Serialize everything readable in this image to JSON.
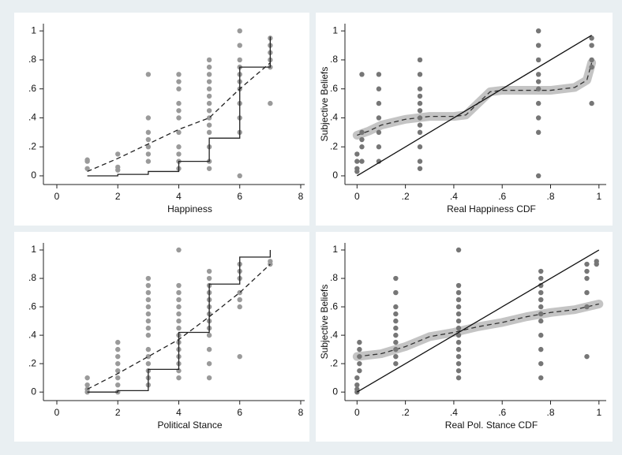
{
  "chart_data": [
    {
      "type": "scatter",
      "xlabel": "Happiness",
      "xlim": [
        -0.44,
        8.13
      ],
      "ylim": [
        -0.06,
        1.05
      ],
      "xticks": [
        0,
        2,
        4,
        6,
        8
      ],
      "yticks": [
        0,
        {
          "value": 0.2,
          "label": ".2"
        },
        {
          "value": 0.4,
          "label": ".4"
        },
        {
          "value": 0.6,
          "label": ".6"
        },
        {
          "value": 0.8,
          "label": ".8"
        },
        1
      ],
      "series": [
        {
          "type": "scatter",
          "color": "#9a9a9a",
          "x": [
            1,
            1,
            1,
            2,
            2,
            2,
            3,
            3,
            3,
            3,
            3,
            3,
            3,
            4,
            4,
            4,
            4,
            4,
            4,
            4,
            4,
            4,
            4,
            4,
            5,
            5,
            5,
            5,
            5,
            5,
            5,
            5,
            5,
            5,
            5,
            5,
            5,
            5,
            6,
            6,
            6,
            6,
            6,
            6,
            6,
            6,
            6,
            6,
            6,
            7,
            7,
            7,
            7,
            7,
            7
          ],
          "values": [
            0.05,
            0.1,
            0.11,
            0.04,
            0.06,
            0.15,
            0.1,
            0.15,
            0.2,
            0.25,
            0.3,
            0.4,
            0.7,
            0.05,
            0.1,
            0.15,
            0.2,
            0.3,
            0.4,
            0.45,
            0.5,
            0.6,
            0.65,
            0.7,
            0.05,
            0.1,
            0.2,
            0.3,
            0.35,
            0.4,
            0.45,
            0.5,
            0.55,
            0.6,
            0.65,
            0.7,
            0.75,
            0.8,
            0,
            0.3,
            0.4,
            0.5,
            0.6,
            0.65,
            0.7,
            0.75,
            0.8,
            0.9,
            1,
            0.5,
            0.75,
            0.8,
            0.85,
            0.9,
            0.95
          ]
        },
        {
          "type": "line",
          "dash": true,
          "color": "#222222",
          "x": [
            1,
            2,
            3,
            4,
            5,
            6,
            7
          ],
          "values": [
            0.03,
            0.12,
            0.22,
            0.32,
            0.4,
            0.6,
            0.78
          ]
        },
        {
          "type": "step",
          "color": "#222222",
          "x": [
            1,
            2,
            3,
            4,
            5,
            6,
            7
          ],
          "values": [
            0,
            0.01,
            0.03,
            0.1,
            0.26,
            0.75,
            0.96
          ]
        }
      ]
    },
    {
      "type": "scatter",
      "xlabel": "Real Happiness CDF",
      "ylabel": "Subjective Beliefs",
      "xlim": [
        -0.05,
        1.03
      ],
      "ylim": [
        -0.06,
        1.05
      ],
      "xticks": [
        0,
        {
          "value": 0.2,
          "label": ".2"
        },
        {
          "value": 0.4,
          "label": ".4"
        },
        {
          "value": 0.6,
          "label": ".6"
        },
        {
          "value": 0.8,
          "label": ".8"
        },
        1
      ],
      "yticks": [
        0,
        {
          "value": 0.2,
          "label": ".2"
        },
        {
          "value": 0.4,
          "label": ".4"
        },
        {
          "value": 0.6,
          "label": ".6"
        },
        {
          "value": 0.8,
          "label": ".8"
        },
        1
      ],
      "series": [
        {
          "type": "line",
          "dash": true,
          "color": "#333333",
          "band_color": "#c4c4c4",
          "x": [
            0,
            0.05,
            0.1,
            0.2,
            0.3,
            0.4,
            0.45,
            0.5,
            0.55,
            0.6,
            0.7,
            0.8,
            0.9,
            0.95,
            0.97
          ],
          "values": [
            0.28,
            0.31,
            0.35,
            0.39,
            0.41,
            0.41,
            0.42,
            0.5,
            0.58,
            0.59,
            0.59,
            0.59,
            0.61,
            0.66,
            0.78
          ]
        },
        {
          "type": "scatter",
          "color": "#767676",
          "x": [
            0,
            0,
            0,
            0,
            0.02,
            0.02,
            0.02,
            0.02,
            0.02,
            0.09,
            0.09,
            0.09,
            0.09,
            0.09,
            0.09,
            0.09,
            0.26,
            0.26,
            0.26,
            0.26,
            0.26,
            0.26,
            0.26,
            0.26,
            0.26,
            0.26,
            0.26,
            0.26,
            0.75,
            0.75,
            0.75,
            0.75,
            0.75,
            0.75,
            0.75,
            0.75,
            0.75,
            0.75,
            0.97,
            0.97,
            0.97,
            0.97,
            0.97
          ],
          "values": [
            0.03,
            0.05,
            0.1,
            0.15,
            0.1,
            0.2,
            0.25,
            0.3,
            0.7,
            0.1,
            0.2,
            0.3,
            0.4,
            0.5,
            0.6,
            0.7,
            0.05,
            0.1,
            0.2,
            0.3,
            0.35,
            0.4,
            0.45,
            0.5,
            0.55,
            0.6,
            0.7,
            0.8,
            0,
            0.3,
            0.4,
            0.5,
            0.6,
            0.65,
            0.7,
            0.8,
            0.9,
            1,
            0.5,
            0.75,
            0.8,
            0.9,
            0.95
          ]
        },
        {
          "type": "line",
          "dash": false,
          "color": "#111111",
          "x": [
            0,
            0.97
          ],
          "values": [
            0,
            0.97
          ]
        }
      ]
    },
    {
      "type": "scatter",
      "xlabel": "Political Stance",
      "xlim": [
        -0.44,
        8.13
      ],
      "ylim": [
        -0.06,
        1.05
      ],
      "xticks": [
        0,
        2,
        4,
        6,
        8
      ],
      "yticks": [
        0,
        {
          "value": 0.2,
          "label": ".2"
        },
        {
          "value": 0.4,
          "label": ".4"
        },
        {
          "value": 0.6,
          "label": ".6"
        },
        {
          "value": 0.8,
          "label": ".8"
        },
        1
      ],
      "series": [
        {
          "type": "scatter",
          "color": "#9a9a9a",
          "x": [
            1,
            1,
            1,
            1,
            2,
            2,
            2,
            2,
            2,
            2,
            2,
            2,
            3,
            3,
            3,
            3,
            3,
            3,
            3,
            3,
            3,
            3,
            3,
            3,
            3,
            3,
            3,
            4,
            4,
            4,
            4,
            4,
            4,
            4,
            4,
            4,
            4,
            4,
            4,
            4,
            4,
            4,
            5,
            5,
            5,
            5,
            5,
            5,
            5,
            5,
            5,
            5,
            5,
            5,
            5,
            6,
            6,
            6,
            6,
            6,
            6,
            6,
            7,
            7
          ],
          "values": [
            0,
            0.02,
            0.05,
            0.1,
            0,
            0.05,
            0.1,
            0.15,
            0.2,
            0.25,
            0.3,
            0.35,
            0.05,
            0.1,
            0.15,
            0.2,
            0.25,
            0.3,
            0.4,
            0.45,
            0.5,
            0.55,
            0.6,
            0.65,
            0.7,
            0.75,
            0.8,
            0.1,
            0.15,
            0.2,
            0.25,
            0.3,
            0.35,
            0.4,
            0.45,
            0.5,
            0.55,
            0.6,
            0.65,
            0.7,
            0.75,
            1,
            0.1,
            0.2,
            0.3,
            0.4,
            0.45,
            0.5,
            0.55,
            0.6,
            0.65,
            0.7,
            0.75,
            0.8,
            0.85,
            0.25,
            0.6,
            0.65,
            0.7,
            0.8,
            0.85,
            0.9,
            0.9,
            0.92
          ]
        },
        {
          "type": "line",
          "dash": true,
          "color": "#222222",
          "x": [
            1,
            2,
            3,
            4,
            5,
            6,
            7
          ],
          "values": [
            0.02,
            0.13,
            0.25,
            0.37,
            0.53,
            0.7,
            0.9
          ]
        },
        {
          "type": "step",
          "color": "#222222",
          "x": [
            1,
            2,
            3,
            4,
            5,
            6,
            7
          ],
          "values": [
            0,
            0.01,
            0.16,
            0.42,
            0.76,
            0.95,
            1
          ]
        }
      ]
    },
    {
      "type": "scatter",
      "xlabel": "Real Pol. Stance CDF",
      "ylabel": "Subjective Beliefs",
      "xlim": [
        -0.05,
        1.03
      ],
      "ylim": [
        -0.06,
        1.05
      ],
      "xticks": [
        0,
        {
          "value": 0.2,
          "label": ".2"
        },
        {
          "value": 0.4,
          "label": ".4"
        },
        {
          "value": 0.6,
          "label": ".6"
        },
        {
          "value": 0.8,
          "label": ".8"
        },
        1
      ],
      "yticks": [
        0,
        {
          "value": 0.2,
          "label": ".2"
        },
        {
          "value": 0.4,
          "label": ".4"
        },
        {
          "value": 0.6,
          "label": ".6"
        },
        {
          "value": 0.8,
          "label": ".8"
        },
        1
      ],
      "series": [
        {
          "type": "line",
          "dash": true,
          "color": "#333333",
          "band_color": "#c4c4c4",
          "x": [
            0,
            0.1,
            0.2,
            0.3,
            0.4,
            0.5,
            0.6,
            0.7,
            0.8,
            0.9,
            1
          ],
          "values": [
            0.25,
            0.27,
            0.32,
            0.39,
            0.42,
            0.46,
            0.49,
            0.53,
            0.56,
            0.58,
            0.62
          ]
        },
        {
          "type": "scatter",
          "color": "#767676",
          "x": [
            0,
            0,
            0,
            0,
            0.01,
            0.01,
            0.01,
            0.01,
            0.01,
            0.16,
            0.16,
            0.16,
            0.16,
            0.16,
            0.16,
            0.16,
            0.16,
            0.16,
            0.16,
            0.16,
            0.42,
            0.42,
            0.42,
            0.42,
            0.42,
            0.42,
            0.42,
            0.42,
            0.42,
            0.42,
            0.42,
            0.42,
            0.42,
            0.42,
            0.42,
            0.76,
            0.76,
            0.76,
            0.76,
            0.76,
            0.76,
            0.76,
            0.76,
            0.76,
            0.76,
            0.76,
            0.76,
            0.95,
            0.95,
            0.95,
            0.95,
            0.95,
            0.95,
            0.99,
            0.99
          ],
          "values": [
            0,
            0.02,
            0.05,
            0.1,
            0.15,
            0.2,
            0.25,
            0.3,
            0.35,
            0.2,
            0.25,
            0.3,
            0.35,
            0.4,
            0.45,
            0.5,
            0.55,
            0.6,
            0.7,
            0.8,
            0.1,
            0.15,
            0.2,
            0.25,
            0.3,
            0.35,
            0.4,
            0.45,
            0.5,
            0.55,
            0.6,
            0.65,
            0.7,
            0.75,
            1,
            0.1,
            0.2,
            0.3,
            0.4,
            0.5,
            0.55,
            0.6,
            0.65,
            0.7,
            0.75,
            0.8,
            0.85,
            0.25,
            0.6,
            0.7,
            0.8,
            0.85,
            0.9,
            0.9,
            0.92
          ]
        },
        {
          "type": "line",
          "dash": false,
          "color": "#111111",
          "x": [
            0,
            1
          ],
          "values": [
            0,
            1
          ]
        }
      ]
    }
  ]
}
